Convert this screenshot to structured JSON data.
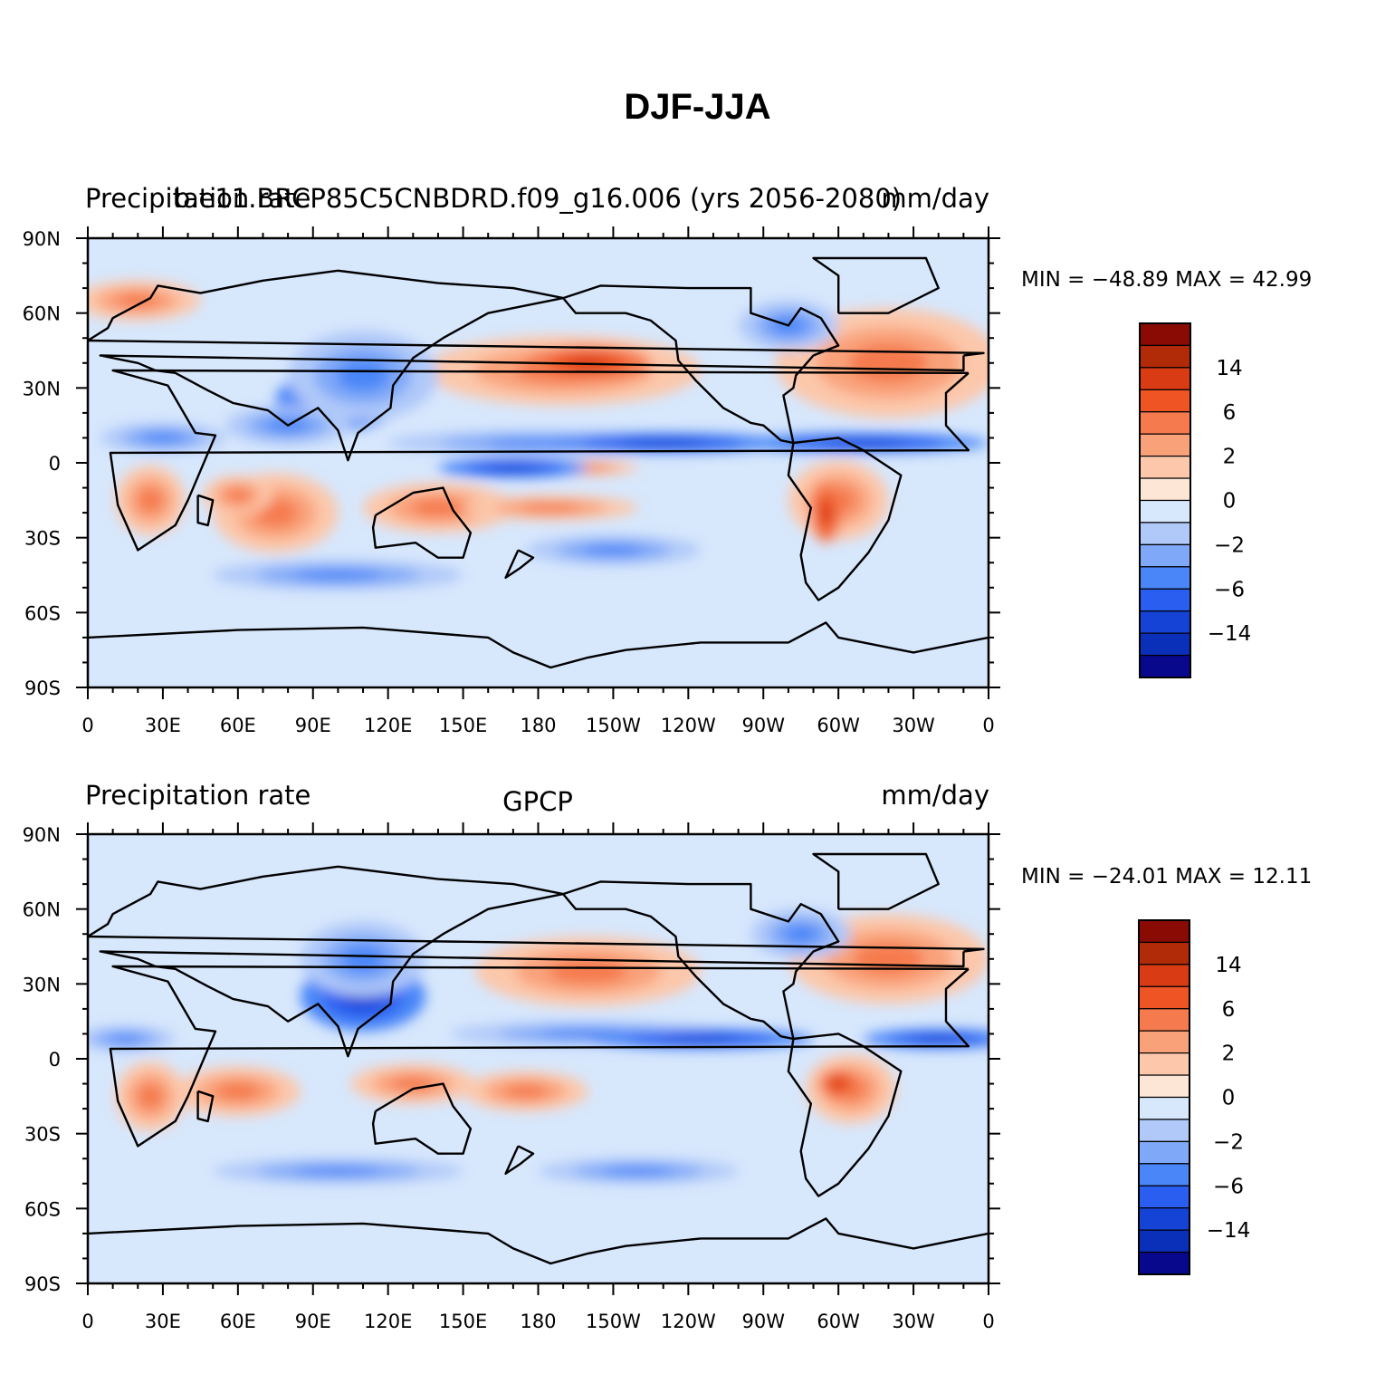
{
  "title": "DJF-JJA",
  "colorbar": {
    "colors": [
      "#08088c",
      "#0a2fb8",
      "#1443d6",
      "#2a5ef0",
      "#4a86f8",
      "#7fa8f8",
      "#b0c9f9",
      "#d7e7fc",
      "#fde6d6",
      "#fcc7aa",
      "#f9a27a",
      "#f57a4d",
      "#ee5424",
      "#d93c14",
      "#b22b09",
      "#8a0b04"
    ],
    "labels": [
      {
        "after_box": 2,
        "text": "14"
      },
      {
        "after_box": 4,
        "text": "6"
      },
      {
        "after_box": 6,
        "text": "2"
      },
      {
        "after_box": 8,
        "text": "0"
      },
      {
        "after_box": 10,
        "text": "−2"
      },
      {
        "after_box": 12,
        "text": "−6"
      },
      {
        "after_box": 14,
        "text": "−14"
      }
    ]
  },
  "axes": {
    "lat_labels": [
      "90N",
      "60N",
      "30N",
      "0",
      "30S",
      "60S",
      "90S"
    ],
    "lon_labels": [
      "0",
      "30E",
      "60E",
      "90E",
      "120E",
      "150E",
      "180",
      "150W",
      "120W",
      "90W",
      "60W",
      "30W",
      "0"
    ]
  },
  "panels": [
    {
      "left_title": "Precipitation rate",
      "center_title": "b.e11.BRCP85C5CNBDRD.f09_g16.006 (yrs 2056-2080)",
      "right_title": "mm/day",
      "stats": "MIN = −48.89 MAX =   42.99",
      "features": [
        {
          "lon": 75,
          "lat": -20,
          "val": "pos",
          "r": [
            25,
            16
          ]
        },
        {
          "lon": 60,
          "lat": -13,
          "val": "pos",
          "r": [
            14,
            8
          ]
        },
        {
          "lon": 25,
          "lat": -15,
          "val": "pos",
          "r": [
            14,
            14
          ]
        },
        {
          "lon": 190,
          "lat": 37,
          "val": "pos",
          "r": [
            55,
            14
          ]
        },
        {
          "lon": 200,
          "lat": 40,
          "val": "pos2",
          "r": [
            25,
            7
          ]
        },
        {
          "lon": 320,
          "lat": 40,
          "val": "pos",
          "r": [
            45,
            22
          ]
        },
        {
          "lon": 300,
          "lat": -15,
          "val": "pos",
          "r": [
            20,
            16
          ]
        },
        {
          "lon": 295,
          "lat": -20,
          "val": "pos2",
          "r": [
            6,
            12
          ]
        },
        {
          "lon": 140,
          "lat": -18,
          "val": "pos",
          "r": [
            30,
            10
          ]
        },
        {
          "lon": 185,
          "lat": -18,
          "val": "pos",
          "r": [
            35,
            5
          ]
        },
        {
          "lon": 200,
          "lat": -2,
          "val": "pos",
          "r": [
            20,
            3
          ]
        },
        {
          "lon": 20,
          "lat": 65,
          "val": "pos",
          "r": [
            25,
            8
          ]
        },
        {
          "lon": 100,
          "lat": 25,
          "val": "neg2",
          "r": [
            25,
            12
          ]
        },
        {
          "lon": 110,
          "lat": 35,
          "val": "neg",
          "r": [
            30,
            18
          ]
        },
        {
          "lon": 80,
          "lat": 15,
          "val": "neg",
          "r": [
            25,
            8
          ]
        },
        {
          "lon": 180,
          "lat": 8,
          "val": "neg",
          "r": [
            60,
            5
          ]
        },
        {
          "lon": 230,
          "lat": 8,
          "val": "neg2",
          "r": [
            50,
            4
          ]
        },
        {
          "lon": 310,
          "lat": 8,
          "val": "neg2",
          "r": [
            50,
            4
          ]
        },
        {
          "lon": 30,
          "lat": 10,
          "val": "neg",
          "r": [
            25,
            6
          ]
        },
        {
          "lon": 100,
          "lat": -45,
          "val": "neg",
          "r": [
            50,
            6
          ]
        },
        {
          "lon": 210,
          "lat": -35,
          "val": "neg",
          "r": [
            35,
            6
          ]
        },
        {
          "lon": 280,
          "lat": 55,
          "val": "neg",
          "r": [
            20,
            10
          ]
        },
        {
          "lon": 170,
          "lat": -2,
          "val": "neg2",
          "r": [
            30,
            4
          ]
        }
      ]
    },
    {
      "left_title": "Precipitation rate",
      "center_title": "GPCP",
      "right_title": "mm/day",
      "stats": "MIN = −24.01 MAX =   12.11",
      "features": [
        {
          "lon": 60,
          "lat": -13,
          "val": "pos",
          "r": [
            25,
            10
          ]
        },
        {
          "lon": 25,
          "lat": -15,
          "val": "pos",
          "r": [
            14,
            14
          ]
        },
        {
          "lon": 200,
          "lat": 35,
          "val": "pos",
          "r": [
            45,
            14
          ]
        },
        {
          "lon": 320,
          "lat": 40,
          "val": "pos",
          "r": [
            40,
            18
          ]
        },
        {
          "lon": 305,
          "lat": -12,
          "val": "pos",
          "r": [
            18,
            14
          ]
        },
        {
          "lon": 300,
          "lat": -10,
          "val": "pos2",
          "r": [
            8,
            6
          ]
        },
        {
          "lon": 130,
          "lat": -10,
          "val": "pos",
          "r": [
            25,
            8
          ]
        },
        {
          "lon": 175,
          "lat": -13,
          "val": "pos",
          "r": [
            25,
            8
          ]
        },
        {
          "lon": 110,
          "lat": 25,
          "val": "neg2",
          "r": [
            25,
            14
          ]
        },
        {
          "lon": 110,
          "lat": 40,
          "val": "neg",
          "r": [
            25,
            15
          ]
        },
        {
          "lon": 200,
          "lat": 10,
          "val": "neg",
          "r": [
            55,
            5
          ]
        },
        {
          "lon": 245,
          "lat": 8,
          "val": "neg2",
          "r": [
            45,
            4
          ]
        },
        {
          "lon": 340,
          "lat": 8,
          "val": "neg2",
          "r": [
            30,
            4
          ]
        },
        {
          "lon": 15,
          "lat": 8,
          "val": "neg",
          "r": [
            20,
            5
          ]
        },
        {
          "lon": 285,
          "lat": 50,
          "val": "neg",
          "r": [
            20,
            10
          ]
        },
        {
          "lon": 100,
          "lat": -45,
          "val": "neg",
          "r": [
            50,
            5
          ]
        },
        {
          "lon": 220,
          "lat": -45,
          "val": "neg",
          "r": [
            40,
            5
          ]
        }
      ]
    }
  ]
}
